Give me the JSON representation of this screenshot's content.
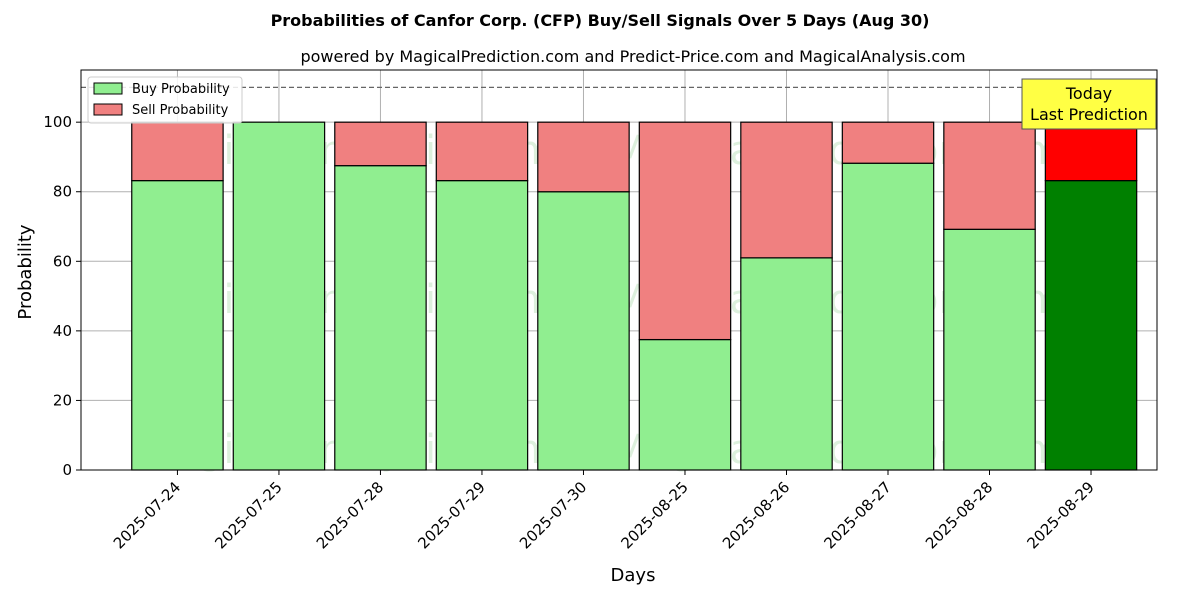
{
  "chart_data": {
    "type": "bar",
    "title": "Probabilities of Canfor Corp. (CFP) Buy/Sell Signals Over 5 Days (Aug 30)",
    "subtitle": "powered by MagicalPrediction.com and Predict-Price.com and MagicalAnalysis.com",
    "xlabel": "Days",
    "ylabel": "Probability",
    "ylim": [
      0,
      115
    ],
    "yticks": [
      0,
      20,
      40,
      60,
      80,
      100
    ],
    "reference_line": 110,
    "grid": true,
    "legend_position": "top-left",
    "categories": [
      "2025-07-24",
      "2025-07-25",
      "2025-07-28",
      "2025-07-29",
      "2025-07-30",
      "2025-08-25",
      "2025-08-26",
      "2025-08-27",
      "2025-08-28",
      "2025-08-29"
    ],
    "series": [
      {
        "name": "Buy Probability",
        "values": [
          83.2,
          100,
          87.5,
          83.2,
          80.0,
          37.5,
          61.0,
          88.2,
          69.2,
          83.2
        ],
        "color": "#90ee90",
        "highlight_color": "#008000"
      },
      {
        "name": "Sell Probability",
        "values": [
          16.8,
          0,
          12.5,
          16.8,
          20.0,
          62.5,
          39.0,
          11.8,
          30.8,
          16.8
        ],
        "color": "#f08080",
        "highlight_color": "#ff0000"
      }
    ],
    "highlight_index": 9,
    "annotation": {
      "line1": "Today",
      "line2": "Last Prediction",
      "color": "#ffff44"
    },
    "watermarks": [
      "MagicalAnalysis.com",
      "MagicalPrediction.com"
    ]
  }
}
